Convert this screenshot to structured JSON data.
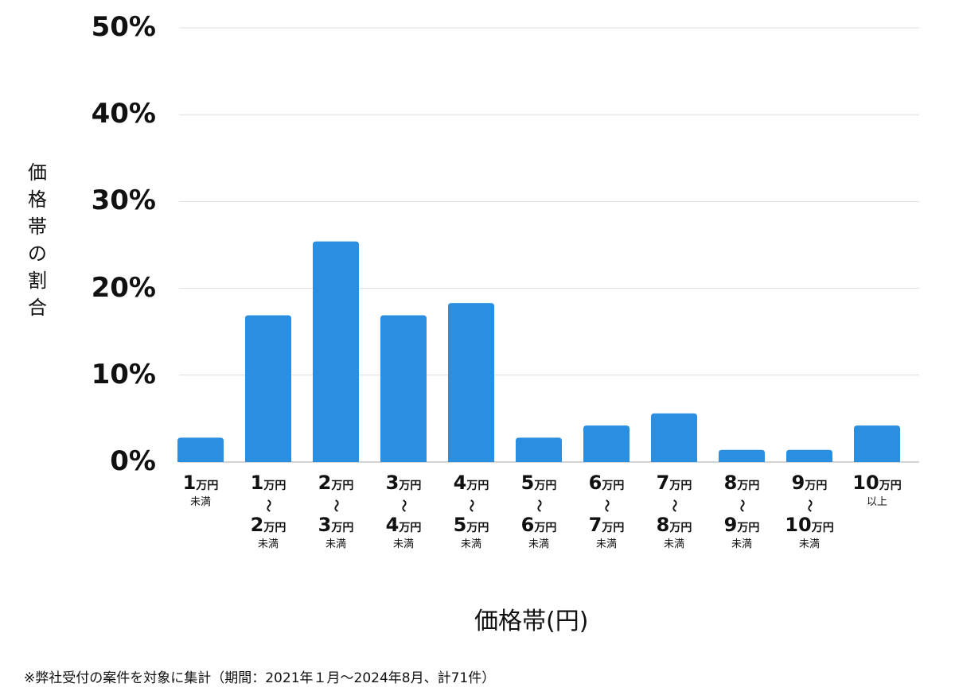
{
  "chart_data": {
    "type": "bar",
    "title": "",
    "ylabel": "価格帯の割合",
    "xlabel": "価格帯(円)",
    "ylim": [
      0,
      50
    ],
    "yticks": [
      "0%",
      "10%",
      "20%",
      "30%",
      "40%",
      "50%"
    ],
    "ytick_values": [
      0,
      10,
      20,
      30,
      40,
      50
    ],
    "grid": true,
    "bar_color": "#2a8fe0",
    "range_mark": "〜",
    "categories": [
      {
        "from": "1",
        "unit": "万円",
        "to": "",
        "to_unit": "",
        "suffix": "未満"
      },
      {
        "from": "1",
        "unit": "万円",
        "to": "2",
        "to_unit": "万円",
        "suffix": "未満"
      },
      {
        "from": "2",
        "unit": "万円",
        "to": "3",
        "to_unit": "万円",
        "suffix": "未満"
      },
      {
        "from": "3",
        "unit": "万円",
        "to": "4",
        "to_unit": "万円",
        "suffix": "未満"
      },
      {
        "from": "4",
        "unit": "万円",
        "to": "5",
        "to_unit": "万円",
        "suffix": "未満"
      },
      {
        "from": "5",
        "unit": "万円",
        "to": "6",
        "to_unit": "万円",
        "suffix": "未満"
      },
      {
        "from": "6",
        "unit": "万円",
        "to": "7",
        "to_unit": "万円",
        "suffix": "未満"
      },
      {
        "from": "7",
        "unit": "万円",
        "to": "8",
        "to_unit": "万円",
        "suffix": "未満"
      },
      {
        "from": "8",
        "unit": "万円",
        "to": "9",
        "to_unit": "万円",
        "suffix": "未満"
      },
      {
        "from": "9",
        "unit": "万円",
        "to": "10",
        "to_unit": "万円",
        "suffix": "未満"
      },
      {
        "from": "10",
        "unit": "万円",
        "to": "",
        "to_unit": "",
        "suffix": "以上"
      }
    ],
    "values": [
      2.8,
      16.9,
      25.4,
      16.9,
      18.3,
      2.8,
      4.2,
      5.6,
      1.4,
      1.4,
      4.2
    ]
  },
  "footnote": "※弊社受付の案件を対象に集計（期間：2021年１月〜2024年8月、計71件）"
}
